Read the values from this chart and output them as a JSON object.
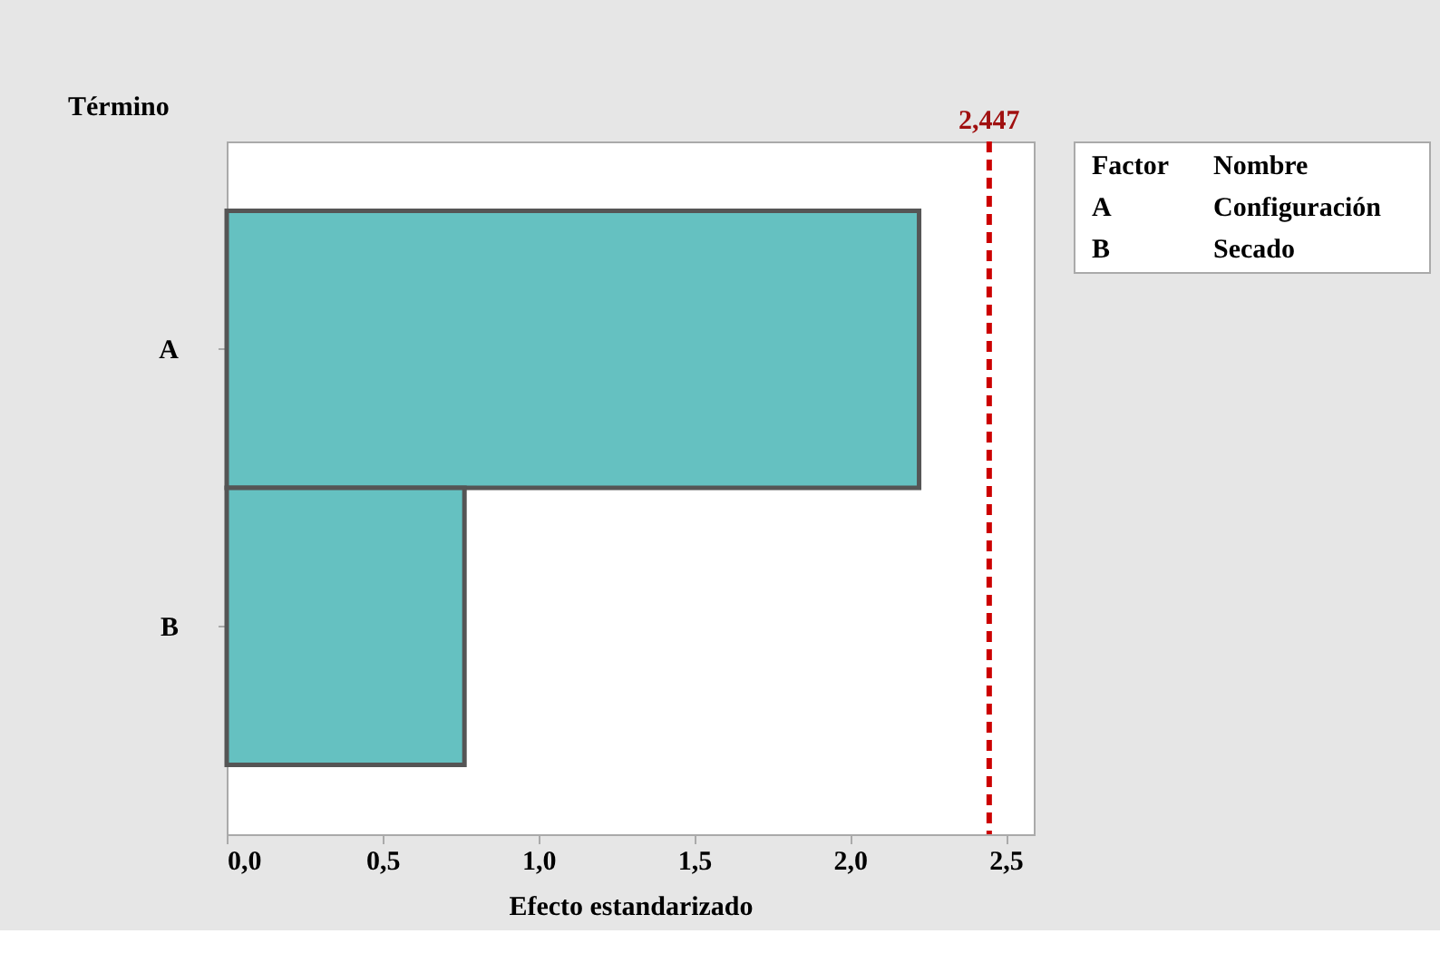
{
  "chart_data": {
    "type": "bar",
    "orientation": "horizontal",
    "ylabel": "Término",
    "xlabel": "Efecto estandarizado",
    "categories": [
      "A",
      "B"
    ],
    "values": [
      2.222,
      0.763
    ],
    "color": "#65c1c1",
    "xlim": [
      0,
      2.59
    ],
    "xticks": [
      {
        "value": 0,
        "label": "0,0"
      },
      {
        "value": 0.5,
        "label": "0,5"
      },
      {
        "value": 1,
        "label": "1,0"
      },
      {
        "value": 1.5,
        "label": "1,5"
      },
      {
        "value": 2,
        "label": "2,0"
      },
      {
        "value": 2.5,
        "label": "2,5"
      }
    ],
    "ref_lines": [
      {
        "axis": "x",
        "value": 2.447,
        "label": "2,447",
        "color": "#cc0000",
        "line_style": "dashed"
      }
    ],
    "annotations": [
      "Factor",
      "Nombre",
      "A",
      "Configuración",
      "B",
      "Secado"
    ],
    "grid": false
  }
}
